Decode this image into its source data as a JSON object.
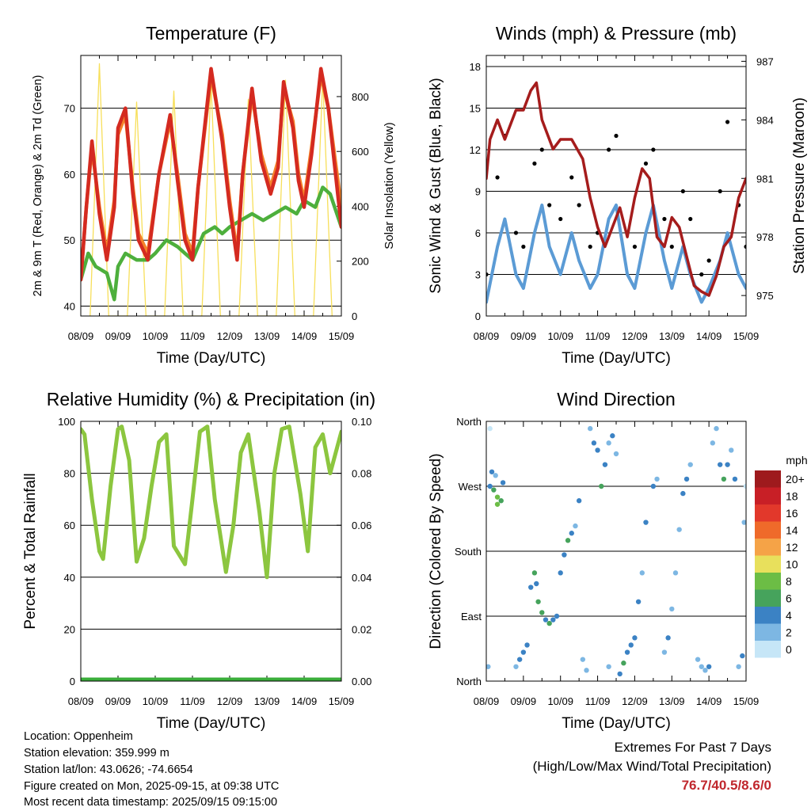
{
  "chart_data": [
    {
      "id": "temperature",
      "type": "line",
      "title": "Temperature (F)",
      "xlabel": "Time (Day/UTC)",
      "ylabel": "2m & 9m T (Red, Orange) & 2m Td (Green)",
      "ylabel_right": "Solar Insolation (Yellow)",
      "x_ticks": [
        "08/09",
        "09/09",
        "10/09",
        "11/09",
        "12/09",
        "13/09",
        "14/09",
        "15/09"
      ],
      "ylim": [
        38.5,
        78
      ],
      "y_ticks": [
        40,
        50,
        60,
        70
      ],
      "y2lim": [
        0,
        950
      ],
      "y2_ticks": [
        0,
        200,
        400,
        600,
        800
      ],
      "grid": true,
      "colors": {
        "t2m": "#d42a20",
        "t9m": "#f5822a",
        "td2m": "#4daf3c",
        "solar": "#f7df5a"
      },
      "series": [
        {
          "key": "t9m",
          "axis": "left",
          "x": [
            0,
            0.15,
            0.3,
            0.5,
            0.7,
            0.9,
            1.0,
            1.2,
            1.4,
            1.55,
            1.8,
            2.1,
            2.4,
            2.6,
            2.8,
            3.0,
            3.15,
            3.5,
            3.8,
            4.0,
            4.2,
            4.35,
            4.6,
            4.85,
            5.1,
            5.3,
            5.45,
            5.7,
            5.85,
            6.0,
            6.2,
            6.45,
            6.65,
            7.0
          ],
          "y": [
            44,
            55,
            64,
            55,
            48,
            56,
            66,
            69,
            58,
            51,
            48,
            60,
            68,
            60,
            51,
            48,
            58,
            75,
            66,
            56,
            48,
            60,
            72,
            63,
            58,
            62,
            73,
            68,
            60,
            56,
            64,
            75,
            70,
            55
          ]
        },
        {
          "key": "t2m",
          "axis": "left",
          "x": [
            0,
            0.15,
            0.3,
            0.5,
            0.7,
            0.9,
            1.0,
            1.2,
            1.4,
            1.55,
            1.8,
            2.1,
            2.4,
            2.6,
            2.8,
            3.0,
            3.15,
            3.5,
            3.8,
            4.0,
            4.2,
            4.35,
            4.6,
            4.85,
            5.1,
            5.3,
            5.45,
            5.7,
            5.85,
            6.0,
            6.2,
            6.45,
            6.65,
            7.0
          ],
          "y": [
            44,
            55,
            65,
            54,
            47,
            55,
            67,
            70,
            57,
            50,
            47,
            60,
            69,
            59,
            50,
            47,
            58,
            76,
            65,
            55,
            47,
            60,
            73,
            62,
            57,
            61,
            74,
            67,
            59,
            55,
            63,
            76,
            70,
            52
          ]
        },
        {
          "key": "td2m",
          "axis": "left",
          "x": [
            0,
            0.2,
            0.4,
            0.7,
            0.9,
            1.0,
            1.2,
            1.5,
            1.8,
            2.0,
            2.3,
            2.6,
            2.8,
            3.0,
            3.3,
            3.6,
            3.8,
            4.0,
            4.3,
            4.6,
            4.9,
            5.2,
            5.5,
            5.8,
            6.0,
            6.3,
            6.5,
            6.7,
            7.0
          ],
          "y": [
            44,
            48,
            46,
            45,
            41,
            46,
            48,
            47,
            47,
            48,
            50,
            49,
            48,
            47,
            51,
            52,
            51,
            52,
            53,
            54,
            53,
            54,
            55,
            54,
            56,
            55,
            58,
            57,
            52
          ]
        },
        {
          "key": "solar",
          "axis": "right",
          "x": [
            0.25,
            0.5,
            0.75,
            1.25,
            1.5,
            1.75,
            2.25,
            2.5,
            2.75,
            3.25,
            3.5,
            3.75,
            4.25,
            4.5,
            4.75,
            5.25,
            5.5,
            5.75,
            6.25,
            6.5,
            6.75
          ],
          "y": [
            0,
            920,
            0,
            0,
            780,
            0,
            0,
            820,
            0,
            0,
            850,
            0,
            0,
            790,
            0,
            0,
            860,
            0,
            0,
            870,
            0
          ]
        }
      ]
    },
    {
      "id": "winds",
      "type": "line",
      "title": "Winds (mph) & Pressure (mb)",
      "xlabel": "Time (Day/UTC)",
      "ylabel": "Sonic Wind & Gust (Blue, Black)",
      "ylabel_right": "Station Pressure (Maroon)",
      "x_ticks": [
        "08/09",
        "09/09",
        "10/09",
        "11/09",
        "12/09",
        "13/09",
        "14/09",
        "15/09"
      ],
      "ylim": [
        0,
        18.8
      ],
      "y_ticks": [
        0,
        3,
        6,
        9,
        12,
        15,
        18
      ],
      "y2lim": [
        973.95,
        987.3
      ],
      "y2_ticks": [
        975,
        978,
        981,
        984,
        987
      ],
      "grid": true,
      "colors": {
        "wind": "#5b9bd5",
        "gust": "#000000",
        "pressure": "#a51c1c"
      },
      "series": [
        {
          "key": "wind",
          "axis": "left",
          "x": [
            0,
            0.3,
            0.5,
            0.8,
            1.0,
            1.3,
            1.5,
            1.7,
            2.0,
            2.3,
            2.5,
            2.8,
            3.0,
            3.3,
            3.5,
            3.8,
            4.0,
            4.3,
            4.5,
            4.8,
            5.0,
            5.3,
            5.5,
            5.8,
            6.0,
            6.3,
            6.5,
            6.8,
            7.0
          ],
          "y": [
            1,
            5,
            7,
            3,
            2,
            6,
            8,
            5,
            3,
            6,
            4,
            2,
            3,
            7,
            8,
            3,
            2,
            6,
            8,
            4,
            2,
            5,
            3,
            1,
            2,
            4,
            6,
            3,
            2
          ]
        },
        {
          "key": "gust",
          "axis": "left",
          "x": [
            0,
            0.3,
            0.5,
            0.8,
            1.0,
            1.3,
            1.5,
            1.7,
            2.0,
            2.3,
            2.5,
            2.8,
            3.0,
            3.3,
            3.5,
            3.8,
            4.0,
            4.3,
            4.5,
            4.8,
            5.0,
            5.3,
            5.5,
            5.8,
            6.0,
            6.3,
            6.5,
            6.8,
            7.0
          ],
          "y": [
            3,
            10,
            13,
            6,
            5,
            11,
            12,
            8,
            7,
            10,
            8,
            5,
            6,
            12,
            13,
            6,
            5,
            11,
            12,
            7,
            5,
            9,
            7,
            3,
            4,
            9,
            14,
            8,
            5
          ]
        },
        {
          "key": "pressure",
          "axis": "right",
          "x": [
            0,
            0.1,
            0.3,
            0.5,
            0.8,
            1.0,
            1.2,
            1.35,
            1.5,
            1.8,
            2.0,
            2.3,
            2.6,
            2.8,
            3.0,
            3.2,
            3.4,
            3.6,
            3.8,
            4.0,
            4.2,
            4.4,
            4.6,
            4.8,
            5.0,
            5.2,
            5.4,
            5.6,
            5.8,
            6.0,
            6.2,
            6.4,
            6.6,
            6.8,
            7.0
          ],
          "y": [
            981,
            983,
            984,
            983,
            984.5,
            984.5,
            985.5,
            985.9,
            984,
            982.5,
            983,
            983,
            982,
            980,
            978.5,
            977.5,
            978.5,
            979.5,
            978,
            980,
            981.5,
            981,
            978,
            977.5,
            979,
            978.5,
            977,
            975.5,
            975.2,
            975,
            976,
            977.5,
            978,
            980,
            981
          ]
        }
      ]
    },
    {
      "id": "humidity",
      "type": "line",
      "title": "Relative Humidity (%) & Precipitation (in)",
      "xlabel": "Time (Day/UTC)",
      "ylabel": "Percent & Total Rainfall",
      "x_ticks": [
        "08/09",
        "09/09",
        "10/09",
        "11/09",
        "12/09",
        "13/09",
        "14/09",
        "15/09"
      ],
      "ylim": [
        0,
        100
      ],
      "y_ticks": [
        0,
        20,
        40,
        60,
        80,
        100
      ],
      "y2lim": [
        0,
        0.1
      ],
      "y2_ticks": [
        "0.00",
        "0.02",
        "0.04",
        "0.06",
        "0.08",
        "0.10"
      ],
      "grid": true,
      "colors": {
        "rh": "#8cc63f",
        "precip": "#3aae3a"
      },
      "series": [
        {
          "key": "rh",
          "axis": "left",
          "x": [
            0,
            0.1,
            0.3,
            0.5,
            0.6,
            0.8,
            1.0,
            1.1,
            1.3,
            1.5,
            1.7,
            1.9,
            2.1,
            2.3,
            2.5,
            2.8,
            3.0,
            3.2,
            3.4,
            3.6,
            3.9,
            4.1,
            4.3,
            4.5,
            4.8,
            5.0,
            5.2,
            5.4,
            5.6,
            5.9,
            6.1,
            6.3,
            6.5,
            6.7,
            7.0
          ],
          "y": [
            97,
            95,
            70,
            50,
            47,
            75,
            97,
            98,
            85,
            46,
            55,
            75,
            92,
            95,
            52,
            45,
            70,
            96,
            98,
            70,
            42,
            60,
            88,
            95,
            65,
            40,
            80,
            97,
            98,
            72,
            50,
            90,
            95,
            80,
            96
          ]
        },
        {
          "key": "precip",
          "axis": "right",
          "x": [
            0,
            7
          ],
          "y": [
            0,
            0
          ]
        }
      ]
    },
    {
      "id": "direction",
      "type": "scatter",
      "title": "Wind Direction",
      "xlabel": "Time (Day/UTC)",
      "ylabel": "Direction (Colored By Speed)",
      "x_ticks": [
        "08/09",
        "09/09",
        "10/09",
        "11/09",
        "12/09",
        "13/09",
        "14/09",
        "15/09"
      ],
      "y_ticks": [
        "North",
        "East",
        "South",
        "West",
        "North"
      ],
      "ylim": [
        0,
        360
      ],
      "grid": true,
      "legend": {
        "title": "mph",
        "position": "right",
        "labels": [
          "20+",
          "18",
          "16",
          "14",
          "12",
          "10",
          "8",
          "6",
          "4",
          "2",
          "0"
        ],
        "colors": [
          "#9e1a1d",
          "#c81f26",
          "#e2382b",
          "#ef6a2a",
          "#f5a347",
          "#e8e05c",
          "#6cbd45",
          "#46a35c",
          "#3b82c4",
          "#7db7e3",
          "#c6e6f7"
        ]
      },
      "points": [
        {
          "x": 0.1,
          "y": 270,
          "s": 4
        },
        {
          "x": 0.2,
          "y": 265,
          "s": 6
        },
        {
          "x": 0.3,
          "y": 255,
          "s": 8
        },
        {
          "x": 0.4,
          "y": 250,
          "s": 6
        },
        {
          "x": 0.15,
          "y": 290,
          "s": 4
        },
        {
          "x": 0.25,
          "y": 285,
          "s": 2
        },
        {
          "x": 0.45,
          "y": 275,
          "s": 4
        },
        {
          "x": 0.05,
          "y": 20,
          "s": 2
        },
        {
          "x": 0.1,
          "y": 350,
          "s": 0
        },
        {
          "x": 0.3,
          "y": 245,
          "s": 8
        },
        {
          "x": 0.8,
          "y": 20,
          "s": 2
        },
        {
          "x": 0.9,
          "y": 30,
          "s": 4
        },
        {
          "x": 1.0,
          "y": 40,
          "s": 4
        },
        {
          "x": 1.1,
          "y": 50,
          "s": 4
        },
        {
          "x": 1.2,
          "y": 130,
          "s": 4
        },
        {
          "x": 1.3,
          "y": 150,
          "s": 6
        },
        {
          "x": 1.35,
          "y": 135,
          "s": 4
        },
        {
          "x": 1.4,
          "y": 110,
          "s": 6
        },
        {
          "x": 1.5,
          "y": 95,
          "s": 6
        },
        {
          "x": 1.6,
          "y": 85,
          "s": 4
        },
        {
          "x": 1.7,
          "y": 80,
          "s": 6
        },
        {
          "x": 1.8,
          "y": 85,
          "s": 4
        },
        {
          "x": 1.9,
          "y": 90,
          "s": 4
        },
        {
          "x": 2.0,
          "y": 150,
          "s": 4
        },
        {
          "x": 2.1,
          "y": 175,
          "s": 4
        },
        {
          "x": 2.2,
          "y": 195,
          "s": 6
        },
        {
          "x": 2.3,
          "y": 205,
          "s": 4
        },
        {
          "x": 2.4,
          "y": 215,
          "s": 2
        },
        {
          "x": 2.5,
          "y": 250,
          "s": 4
        },
        {
          "x": 2.6,
          "y": 30,
          "s": 2
        },
        {
          "x": 2.7,
          "y": 15,
          "s": 2
        },
        {
          "x": 2.8,
          "y": 350,
          "s": 2
        },
        {
          "x": 2.9,
          "y": 330,
          "s": 4
        },
        {
          "x": 3.0,
          "y": 320,
          "s": 4
        },
        {
          "x": 3.1,
          "y": 270,
          "s": 6
        },
        {
          "x": 3.2,
          "y": 300,
          "s": 4
        },
        {
          "x": 3.3,
          "y": 330,
          "s": 2
        },
        {
          "x": 3.4,
          "y": 340,
          "s": 4
        },
        {
          "x": 3.5,
          "y": 315,
          "s": 2
        },
        {
          "x": 3.3,
          "y": 20,
          "s": 2
        },
        {
          "x": 3.6,
          "y": 10,
          "s": 4
        },
        {
          "x": 3.7,
          "y": 25,
          "s": 6
        },
        {
          "x": 3.8,
          "y": 40,
          "s": 4
        },
        {
          "x": 3.9,
          "y": 50,
          "s": 4
        },
        {
          "x": 4.0,
          "y": 60,
          "s": 4
        },
        {
          "x": 4.1,
          "y": 110,
          "s": 4
        },
        {
          "x": 4.2,
          "y": 150,
          "s": 2
        },
        {
          "x": 4.3,
          "y": 220,
          "s": 4
        },
        {
          "x": 4.5,
          "y": 270,
          "s": 4
        },
        {
          "x": 4.6,
          "y": 280,
          "s": 2
        },
        {
          "x": 4.8,
          "y": 40,
          "s": 2
        },
        {
          "x": 4.9,
          "y": 60,
          "s": 4
        },
        {
          "x": 5.0,
          "y": 100,
          "s": 2
        },
        {
          "x": 5.1,
          "y": 150,
          "s": 2
        },
        {
          "x": 5.2,
          "y": 210,
          "s": 2
        },
        {
          "x": 5.3,
          "y": 260,
          "s": 4
        },
        {
          "x": 5.4,
          "y": 280,
          "s": 4
        },
        {
          "x": 5.5,
          "y": 300,
          "s": 2
        },
        {
          "x": 5.7,
          "y": 30,
          "s": 2
        },
        {
          "x": 5.8,
          "y": 20,
          "s": 2
        },
        {
          "x": 5.9,
          "y": 15,
          "s": 2
        },
        {
          "x": 6.0,
          "y": 20,
          "s": 4
        },
        {
          "x": 6.1,
          "y": 330,
          "s": 2
        },
        {
          "x": 6.2,
          "y": 350,
          "s": 2
        },
        {
          "x": 6.3,
          "y": 300,
          "s": 4
        },
        {
          "x": 6.4,
          "y": 280,
          "s": 6
        },
        {
          "x": 6.5,
          "y": 300,
          "s": 4
        },
        {
          "x": 6.6,
          "y": 320,
          "s": 2
        },
        {
          "x": 6.7,
          "y": 280,
          "s": 4
        },
        {
          "x": 6.8,
          "y": 20,
          "s": 2
        },
        {
          "x": 6.9,
          "y": 35,
          "s": 4
        },
        {
          "x": 6.95,
          "y": 220,
          "s": 2
        },
        {
          "x": 7.0,
          "y": 270,
          "s": 0
        }
      ]
    }
  ],
  "station": {
    "location": "Location: Oppenheim",
    "elevation": "Station elevation: 359.999 m",
    "latlon": "Station lat/lon: 43.0626; -74.6654",
    "created": "Figure created on Mon, 2025-09-15, at 09:38 UTC",
    "latest": "Most recent data timestamp: 2025/09/15 09:15:00"
  },
  "extremes": {
    "title1": "Extremes For Past 7 Days",
    "title2": "(High/Low/Max Wind/Total Precipitation)",
    "values": "76.7/40.5/8.6/0",
    "value_color": "#c0272d"
  }
}
